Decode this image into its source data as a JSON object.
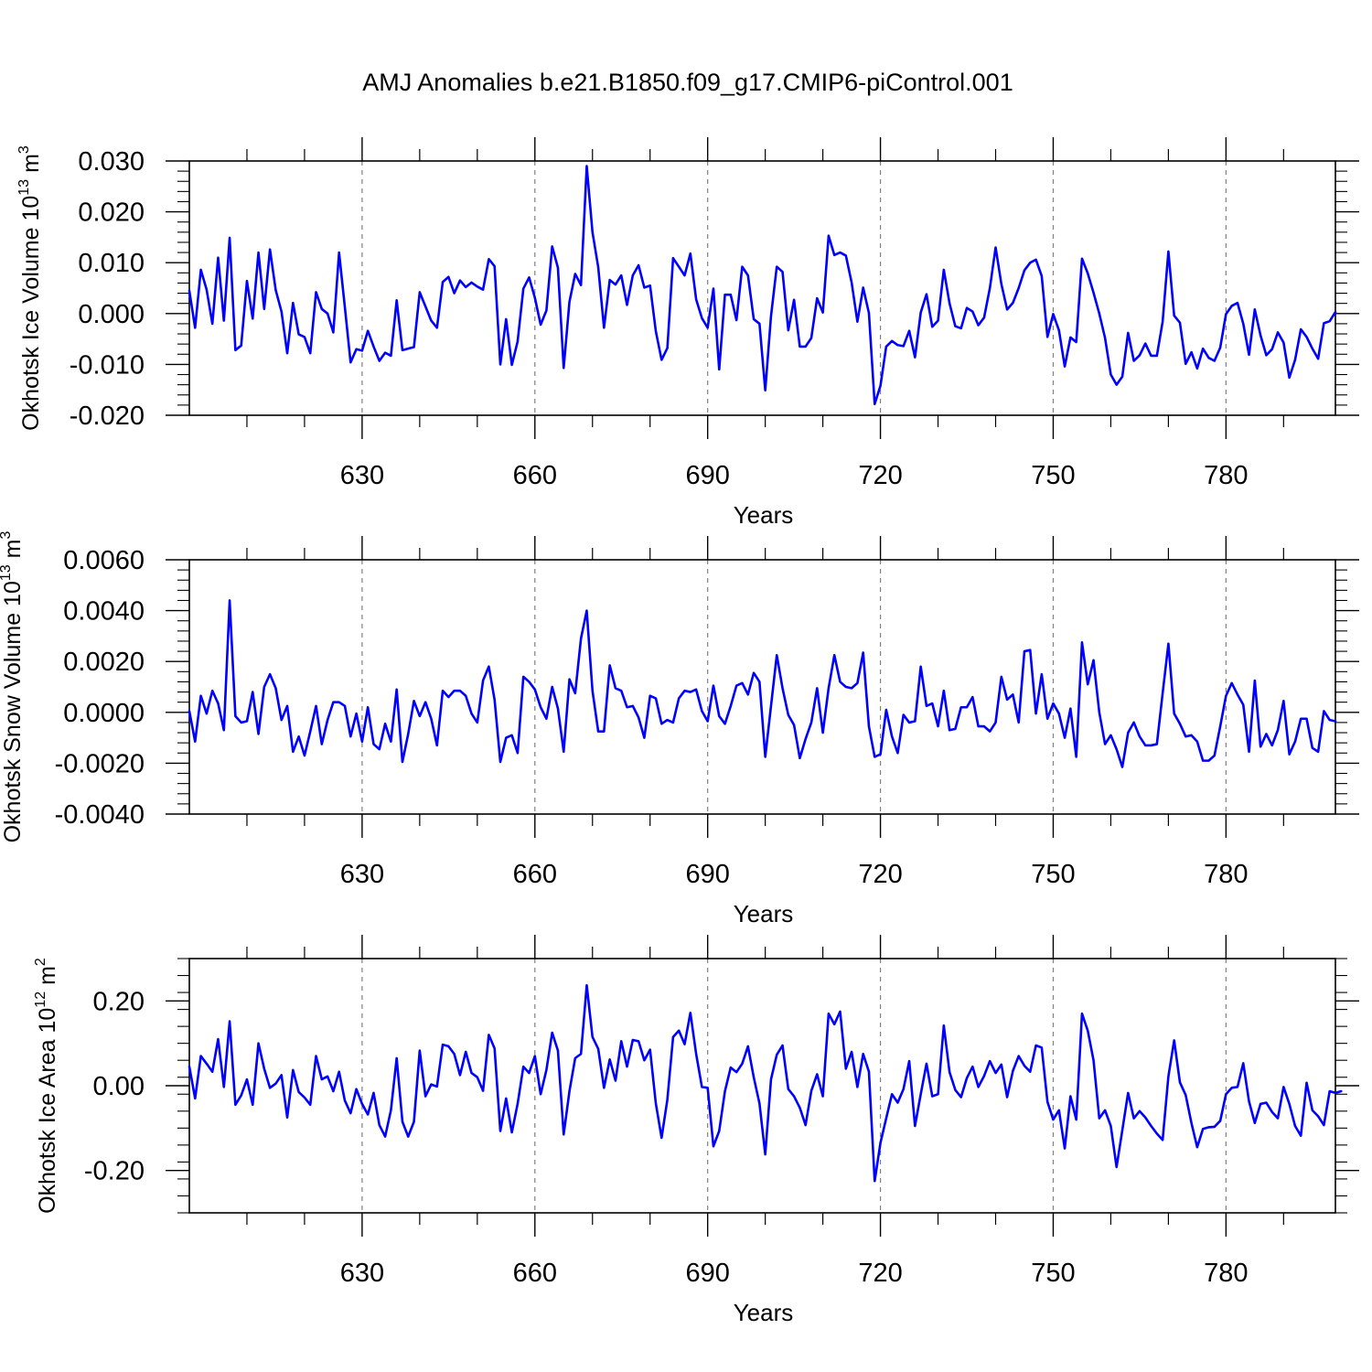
{
  "title": "AMJ Anomalies b.e21.B1850.f09_g17.CMIP6-piControl.001",
  "colors": {
    "line": "#0000ff",
    "axis": "#000000",
    "grid": "#808080",
    "background": "#ffffff"
  },
  "chart_data": [
    {
      "type": "line",
      "ylabel_base": "Okhotsk Ice Volume 10",
      "ylabel_exp": "13",
      "ylabel_unit": "m",
      "ylabel_unit_exp": "3",
      "xlabel": "Years",
      "xlim": [
        600,
        799
      ],
      "ylim": [
        -0.02,
        0.03
      ],
      "ytick_values": [
        -0.02,
        -0.01,
        0,
        0.01,
        0.02,
        0.03
      ],
      "ytick_labels": [
        "-0.020",
        "-0.010",
        "0.000",
        "0.010",
        "0.020",
        "0.030"
      ],
      "xtick_values": [
        630,
        660,
        690,
        720,
        750,
        780
      ],
      "xtick_labels": [
        "630",
        "660",
        "690",
        "720",
        "750",
        "780"
      ],
      "x_start": 600,
      "values": [
        0.0045,
        -0.0028,
        0.0086,
        0.0047,
        -0.002,
        0.011,
        -0.0014,
        0.0149,
        -0.0072,
        -0.0063,
        0.0064,
        -0.001,
        0.012,
        0.0009,
        0.0126,
        0.0046,
        0.0004,
        -0.0078,
        0.0021,
        -0.0041,
        -0.0046,
        -0.0078,
        0.0042,
        0.0009,
        0.0,
        -0.0037,
        0.012,
        0.0013,
        -0.0096,
        -0.007,
        -0.0073,
        -0.0034,
        -0.0065,
        -0.0093,
        -0.0077,
        -0.0083,
        0.0026,
        -0.0072,
        -0.0069,
        -0.0066,
        0.0042,
        0.0014,
        -0.0014,
        -0.0028,
        0.0062,
        0.0072,
        0.004,
        0.0065,
        0.0052,
        0.0061,
        0.0053,
        0.0047,
        0.0107,
        0.0093,
        -0.01,
        -0.0011,
        -0.0101,
        -0.0055,
        0.0049,
        0.0071,
        0.0031,
        -0.0022,
        0.0006,
        0.0132,
        0.009,
        -0.0107,
        0.0023,
        0.0078,
        0.0056,
        0.029,
        0.016,
        0.0091,
        -0.0028,
        0.0066,
        0.0057,
        0.0075,
        0.0017,
        0.0075,
        0.0095,
        0.0051,
        0.0055,
        -0.0035,
        -0.0091,
        -0.0068,
        0.0109,
        0.0092,
        0.0075,
        0.0118,
        0.0028,
        -0.0009,
        -0.0028,
        0.0049,
        -0.011,
        0.0037,
        0.0037,
        -0.0013,
        0.0092,
        0.0075,
        -0.0011,
        -0.002,
        -0.0151,
        -0.0005,
        0.0092,
        0.0082,
        -0.0033,
        0.0027,
        -0.0065,
        -0.0065,
        -0.0048,
        0.003,
        0.0002,
        0.0153,
        0.0115,
        0.012,
        0.0114,
        0.0061,
        -0.0016,
        0.0051,
        0.0001,
        -0.0178,
        -0.0142,
        -0.0065,
        -0.0054,
        -0.0062,
        -0.0064,
        -0.0034,
        -0.0086,
        0.0002,
        0.0038,
        -0.0026,
        -0.0014,
        0.0086,
        0.002,
        -0.0025,
        -0.0029,
        0.0011,
        0.0004,
        -0.0023,
        -0.0008,
        0.005,
        0.013,
        0.0058,
        0.0008,
        0.0021,
        0.005,
        0.0085,
        0.01,
        0.0106,
        0.0074,
        -0.0046,
        -0.0001,
        -0.0033,
        -0.0104,
        -0.0047,
        -0.0056,
        0.0108,
        0.0079,
        0.0041,
        0.0,
        -0.0048,
        -0.012,
        -0.014,
        -0.0124,
        -0.0038,
        -0.0093,
        -0.0082,
        -0.0059,
        -0.0083,
        -0.0083,
        -0.0016,
        0.0122,
        -0.0004,
        -0.0018,
        -0.0099,
        -0.0076,
        -0.0108,
        -0.0069,
        -0.0087,
        -0.0093,
        -0.0067,
        -0.0001,
        0.0015,
        0.0021,
        -0.002,
        -0.0081,
        0.0008,
        -0.0043,
        -0.0082,
        -0.007,
        -0.0037,
        -0.0057,
        -0.0126,
        -0.0091,
        -0.0031,
        -0.0046,
        -0.0069,
        -0.0089,
        -0.0019,
        -0.0015,
        0.0003
      ]
    },
    {
      "type": "line",
      "ylabel_base": "Okhotsk Snow Volume 10",
      "ylabel_exp": "13",
      "ylabel_unit": "m",
      "ylabel_unit_exp": "3",
      "xlabel": "Years",
      "xlim": [
        600,
        799
      ],
      "ylim": [
        -0.004,
        0.006
      ],
      "ytick_values": [
        -0.004,
        -0.002,
        0,
        0.002,
        0.004,
        0.006
      ],
      "ytick_labels": [
        "-0.0040",
        "-0.0020",
        "0.0000",
        "0.0020",
        "0.0040",
        "0.0060"
      ],
      "xtick_values": [
        630,
        660,
        690,
        720,
        750,
        780
      ],
      "xtick_labels": [
        "630",
        "660",
        "690",
        "720",
        "750",
        "780"
      ],
      "x_start": 600,
      "values": [
        5e-05,
        -0.00115,
        0.00065,
        -5e-05,
        0.00085,
        0.00035,
        -0.0007,
        0.0044,
        -0.00015,
        -0.0004,
        -0.00035,
        0.0008,
        -0.00085,
        0.001,
        0.0015,
        0.00095,
        -0.0003,
        0.00025,
        -0.00155,
        -0.00095,
        -0.0017,
        -0.00075,
        0.00025,
        -0.00125,
        -0.0003,
        0.0004,
        0.0004,
        0.00025,
        -0.00095,
        -5e-05,
        -0.00115,
        0.0002,
        -0.00125,
        -0.00145,
        -0.00045,
        -0.00115,
        0.0009,
        -0.00195,
        -0.00085,
        0.00045,
        -0.00015,
        0.0004,
        -0.00025,
        -0.0013,
        0.00085,
        0.0006,
        0.00085,
        0.00085,
        0.00065,
        -5e-05,
        -0.0004,
        0.00125,
        0.0018,
        0.0005,
        -0.00195,
        -0.001,
        -0.0009,
        -0.0016,
        0.0014,
        0.0012,
        0.0009,
        0.0002,
        -0.00025,
        0.001,
        0.00015,
        -0.00155,
        0.0013,
        0.00075,
        0.0029,
        0.004,
        0.00085,
        -0.00075,
        -0.00075,
        0.00185,
        0.00095,
        0.00085,
        0.0002,
        0.00025,
        -0.0002,
        -0.001,
        0.00065,
        0.00055,
        -0.00045,
        -0.0003,
        -0.0004,
        0.00055,
        0.00085,
        0.0008,
        0.0009,
        5e-05,
        -0.00035,
        0.00105,
        -0.00015,
        -0.00045,
        0.00025,
        0.00105,
        0.00115,
        0.0007,
        0.00155,
        0.0012,
        -0.00175,
        0.00025,
        0.00225,
        0.00095,
        -0.0001,
        -0.0005,
        -0.0018,
        -0.00105,
        -0.0004,
        0.00095,
        -0.0008,
        0.00095,
        0.00225,
        0.0012,
        0.001,
        0.00095,
        0.00115,
        0.00235,
        -0.00055,
        -0.00175,
        -0.00165,
        0.0001,
        -0.00095,
        -0.0016,
        -0.0001,
        -0.0004,
        -0.00035,
        0.0018,
        0.00025,
        0.00035,
        -0.00055,
        0.00085,
        -0.0007,
        -0.00065,
        0.0002,
        0.0002,
        0.0006,
        -0.00055,
        -0.00055,
        -0.00075,
        -0.0004,
        0.0014,
        0.0005,
        0.0007,
        -0.0004,
        0.0024,
        0.00245,
        -5e-05,
        0.0015,
        -0.00025,
        0.00035,
        -5e-05,
        -0.001,
        0.00015,
        -0.00175,
        0.00275,
        0.0011,
        0.00205,
        0.0,
        -0.00125,
        -0.0009,
        -0.00145,
        -0.00215,
        -0.0008,
        -0.0004,
        -0.00095,
        -0.0013,
        -0.0013,
        -0.00125,
        0.00075,
        0.0027,
        -5e-05,
        -0.00045,
        -0.00095,
        -0.0009,
        -0.00115,
        -0.0019,
        -0.0019,
        -0.0017,
        -0.00055,
        0.00065,
        0.00115,
        0.0007,
        0.0003,
        -0.00155,
        0.00125,
        -0.00135,
        -0.00085,
        -0.0013,
        -0.0007,
        0.00045,
        -0.00165,
        -0.00115,
        -0.00025,
        -0.00025,
        -0.0014,
        -0.00155,
        5e-05,
        -0.0003,
        -0.00035
      ]
    },
    {
      "type": "line",
      "ylabel_base": "Okhotsk Ice Area 10",
      "ylabel_exp": "12",
      "ylabel_unit": "m",
      "ylabel_unit_exp": "2",
      "xlabel": "Years",
      "xlim": [
        600,
        799
      ],
      "ylim": [
        -0.3,
        0.3
      ],
      "ytick_values": [
        -0.2,
        0,
        0.2
      ],
      "ytick_labels": [
        "-0.20",
        "0.00",
        "0.20"
      ],
      "xtick_values": [
        630,
        660,
        690,
        720,
        750,
        780
      ],
      "xtick_labels": [
        "630",
        "660",
        "690",
        "720",
        "750",
        "780"
      ],
      "x_start": 600,
      "values": [
        0.045,
        -0.03,
        0.07,
        0.052,
        0.033,
        0.11,
        -0.003,
        0.152,
        -0.045,
        -0.023,
        0.015,
        -0.045,
        0.1,
        0.04,
        -0.005,
        0.005,
        0.025,
        -0.075,
        0.037,
        -0.015,
        -0.028,
        -0.045,
        0.07,
        0.015,
        0.022,
        -0.013,
        0.033,
        -0.035,
        -0.065,
        -0.008,
        -0.043,
        -0.068,
        -0.017,
        -0.093,
        -0.12,
        -0.058,
        0.065,
        -0.085,
        -0.12,
        -0.085,
        0.083,
        -0.025,
        0.003,
        -0.002,
        0.097,
        0.093,
        0.075,
        0.025,
        0.08,
        0.03,
        0.02,
        -0.012,
        0.12,
        0.088,
        -0.107,
        -0.03,
        -0.11,
        -0.043,
        0.045,
        0.03,
        0.07,
        -0.02,
        0.037,
        0.125,
        0.083,
        -0.115,
        -0.013,
        0.065,
        0.075,
        0.237,
        0.115,
        0.087,
        -0.005,
        0.062,
        0.012,
        0.105,
        0.045,
        0.108,
        0.105,
        0.06,
        0.085,
        -0.042,
        -0.123,
        -0.033,
        0.115,
        0.13,
        0.098,
        0.172,
        0.075,
        -0.003,
        -0.005,
        -0.143,
        -0.107,
        -0.013,
        0.043,
        0.032,
        0.052,
        0.093,
        0.02,
        -0.042,
        -0.162,
        0.015,
        0.073,
        0.095,
        -0.008,
        -0.025,
        -0.052,
        -0.093,
        -0.012,
        0.027,
        -0.025,
        0.17,
        0.145,
        0.175,
        0.04,
        0.08,
        -0.003,
        0.075,
        0.033,
        -0.225,
        -0.135,
        -0.077,
        -0.02,
        -0.04,
        -0.008,
        0.058,
        -0.095,
        -0.02,
        0.052,
        -0.025,
        -0.02,
        0.142,
        0.032,
        -0.01,
        -0.027,
        0.018,
        0.045,
        -0.003,
        0.023,
        0.058,
        0.03,
        0.05,
        -0.027,
        0.035,
        0.07,
        0.047,
        0.033,
        0.095,
        0.09,
        -0.038,
        -0.08,
        -0.058,
        -0.148,
        -0.025,
        -0.08,
        0.17,
        0.13,
        0.06,
        -0.077,
        -0.058,
        -0.095,
        -0.192,
        -0.105,
        -0.017,
        -0.077,
        -0.06,
        -0.075,
        -0.095,
        -0.113,
        -0.128,
        0.022,
        0.107,
        0.008,
        -0.022,
        -0.088,
        -0.145,
        -0.102,
        -0.098,
        -0.097,
        -0.083,
        -0.02,
        -0.005,
        -0.003,
        0.053,
        -0.037,
        -0.088,
        -0.043,
        -0.04,
        -0.062,
        -0.077,
        -0.003,
        -0.043,
        -0.095,
        -0.118,
        0.007,
        -0.058,
        -0.072,
        -0.093,
        -0.013,
        -0.017,
        -0.013
      ]
    }
  ]
}
